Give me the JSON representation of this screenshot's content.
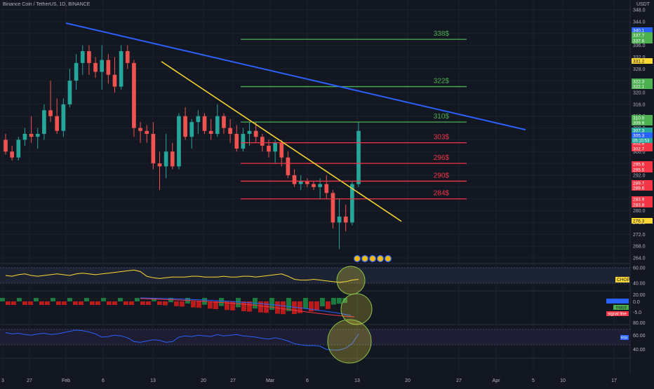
{
  "header": {
    "title": "Binance Coin / TetherUS, 1D, BINANCE",
    "currency": "USDT"
  },
  "colors": {
    "background": "#131722",
    "up": "#26a69a",
    "down": "#ef5350",
    "blue_trend": "#2962ff",
    "yellow_trend": "#fdd835",
    "green_level": "#4caf50",
    "red_level": "#f23645",
    "grid": "#1e222d"
  },
  "chart_data": [
    {
      "type": "candlestick",
      "title": "Binance Coin / TetherUS, 1D, BINANCE",
      "ylim": [
        264,
        348
      ],
      "y_ticks": [
        "348.0",
        "344.0",
        "340.0",
        "336.0",
        "332.0",
        "328.0",
        "324.0",
        "320.0",
        "316.0",
        "312.0",
        "308.0",
        "304.0",
        "300.0",
        "296.0",
        "292.0",
        "288.0",
        "284.0",
        "280.0",
        "276.0",
        "272.0",
        "268.0",
        "264.0"
      ],
      "x_ticks": [
        "3",
        "27",
        "Feb",
        "6",
        "13",
        "20",
        "27",
        "Mar",
        "6",
        "13",
        "20",
        "27",
        "Apr",
        "5",
        "10",
        "17"
      ],
      "candles": [
        [
          304,
          306,
          299,
          300
        ],
        [
          300,
          302,
          297,
          298
        ],
        [
          298,
          305,
          297,
          304
        ],
        [
          304,
          308,
          302,
          306
        ],
        [
          306,
          312,
          303,
          305
        ],
        [
          305,
          308,
          301,
          306
        ],
        [
          306,
          316,
          304,
          314
        ],
        [
          314,
          324,
          310,
          312
        ],
        [
          312,
          318,
          306,
          307
        ],
        [
          307,
          318,
          305,
          316
        ],
        [
          316,
          328,
          315,
          324
        ],
        [
          324,
          333,
          321,
          330
        ],
        [
          330,
          336,
          326,
          334
        ],
        [
          334,
          336,
          326,
          330
        ],
        [
          330,
          332,
          325,
          327
        ],
        [
          327,
          336,
          321,
          331
        ],
        [
          331,
          333,
          323,
          326
        ],
        [
          326,
          332,
          320,
          322
        ],
        [
          322,
          336,
          321,
          334
        ],
        [
          334,
          336,
          328,
          330
        ],
        [
          330,
          331,
          305,
          308
        ],
        [
          308,
          310,
          303,
          307
        ],
        [
          307,
          309,
          303,
          306
        ],
        [
          306,
          310,
          294,
          296
        ],
        [
          296,
          300,
          287,
          295
        ],
        [
          295,
          306,
          291,
          300
        ],
        [
          300,
          303,
          294,
          295
        ],
        [
          295,
          313,
          294,
          312
        ],
        [
          312,
          315,
          304,
          305
        ],
        [
          305,
          311,
          301,
          310
        ],
        [
          310,
          314,
          306,
          312
        ],
        [
          312,
          313,
          306,
          307
        ],
        [
          307,
          311,
          304,
          306
        ],
        [
          306,
          316,
          305,
          312
        ],
        [
          312,
          313,
          306,
          308
        ],
        [
          308,
          311,
          303,
          306
        ],
        [
          306,
          309,
          300,
          301
        ],
        [
          301,
          308,
          300,
          306
        ],
        [
          306,
          310,
          302,
          307
        ],
        [
          307,
          310,
          303,
          305
        ],
        [
          305,
          306,
          300,
          302
        ],
        [
          302,
          304,
          298,
          300
        ],
        [
          300,
          304,
          296,
          303
        ],
        [
          303,
          304,
          295,
          298
        ],
        [
          298,
          300,
          291,
          292
        ],
        [
          292,
          294,
          288,
          289
        ],
        [
          289,
          292,
          287,
          290
        ],
        [
          290,
          291,
          288,
          289
        ],
        [
          289,
          290,
          287,
          288
        ],
        [
          288,
          291,
          284,
          289
        ],
        [
          289,
          292,
          284,
          286
        ],
        [
          286,
          287,
          274,
          276
        ],
        [
          276,
          284,
          267,
          278
        ],
        [
          278,
          282,
          273,
          276
        ],
        [
          276,
          290,
          275,
          289
        ],
        [
          289,
          310,
          288,
          307
        ]
      ],
      "levels": [
        {
          "label": "338$",
          "value": 338,
          "color": "#4caf50"
        },
        {
          "label": "322$",
          "value": 322,
          "color": "#4caf50"
        },
        {
          "label": "310$",
          "value": 310,
          "color": "#4caf50"
        },
        {
          "label": "303$",
          "value": 303,
          "color": "#f23645"
        },
        {
          "label": "296$",
          "value": 296,
          "color": "#f23645"
        },
        {
          "label": "290$",
          "value": 290,
          "color": "#f23645"
        },
        {
          "label": "284$",
          "value": 284,
          "color": "#f23645"
        }
      ],
      "price_tags": [
        {
          "text": "340.1",
          "color": "#2962ff"
        },
        {
          "text": "337.7",
          "color": "#4caf50"
        },
        {
          "text": "337.6",
          "color": "#4caf50"
        },
        {
          "text": "331.2",
          "color": "#fdd835"
        },
        {
          "text": "322.3",
          "color": "#4caf50"
        },
        {
          "text": "322.1",
          "color": "#4caf50"
        },
        {
          "text": "310.0",
          "color": "#4caf50"
        },
        {
          "text": "309.9",
          "color": "#4caf50"
        },
        {
          "text": "307.3",
          "color": "#26a69a"
        },
        {
          "text": "305.3",
          "color": "#2962ff"
        },
        {
          "text": "302.9",
          "color": "#f23645"
        },
        {
          "text": "302.7",
          "color": "#f23645"
        },
        {
          "text": "295.6",
          "color": "#f23645"
        },
        {
          "text": "295.5",
          "color": "#f23645"
        },
        {
          "text": "289.7",
          "color": "#f23645"
        },
        {
          "text": "289.6",
          "color": "#f23645"
        },
        {
          "text": "283.9",
          "color": "#f23645"
        },
        {
          "text": "283.8",
          "color": "#f23645"
        },
        {
          "text": "276.3",
          "color": "#fdd835"
        }
      ],
      "countdown": "05:10:53"
    },
    {
      "type": "line",
      "ylabel": "CHOP",
      "y_ticks": [
        "60.00",
        "40.00"
      ],
      "color": "#fdd835"
    },
    {
      "type": "bar",
      "ylabel": "MACD",
      "y_ticks": [
        "20.00",
        "0.0",
        "-5.0"
      ],
      "legend": [
        {
          "label": "macd",
          "color": "#4caf50"
        },
        {
          "label": "signal line",
          "color": "#f23645"
        }
      ]
    },
    {
      "type": "line",
      "ylabel": "RSI",
      "y_ticks": [
        "80.00",
        "60.00",
        "40.00"
      ],
      "color": "#2962ff"
    }
  ]
}
